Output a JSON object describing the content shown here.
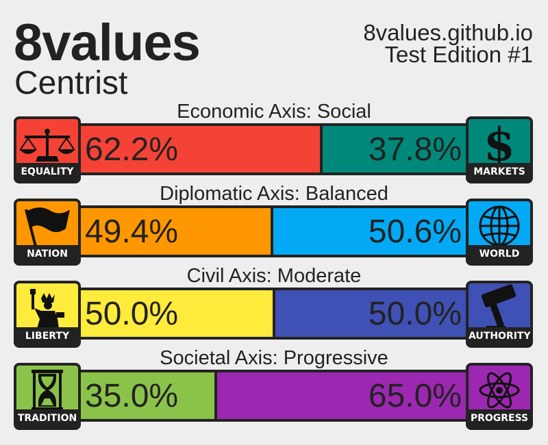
{
  "header": {
    "title": "8values",
    "result": "Centrist",
    "site": "8values.github.io",
    "edition": "Test Edition #1"
  },
  "axes": [
    {
      "label": "Economic Axis: Social",
      "left": {
        "name": "EQUALITY",
        "value": "62.2%",
        "percent": 62.2,
        "color": "#f44336",
        "icon": "scales-icon"
      },
      "right": {
        "name": "MARKETS",
        "value": "37.8%",
        "percent": 37.8,
        "color": "#00897b",
        "icon": "dollar-icon"
      }
    },
    {
      "label": "Diplomatic Axis: Balanced",
      "left": {
        "name": "NATION",
        "value": "49.4%",
        "percent": 49.4,
        "color": "#ff9800",
        "icon": "flag-icon"
      },
      "right": {
        "name": "WORLD",
        "value": "50.6%",
        "percent": 50.6,
        "color": "#03a9f4",
        "icon": "globe-icon"
      }
    },
    {
      "label": "Civil Axis: Moderate",
      "left": {
        "name": "LIBERTY",
        "value": "50.0%",
        "percent": 50.0,
        "color": "#ffeb3b",
        "icon": "statue-of-liberty-icon"
      },
      "right": {
        "name": "AUTHORITY",
        "value": "50.0%",
        "percent": 50.0,
        "color": "#3f51b5",
        "icon": "gavel-icon"
      }
    },
    {
      "label": "Societal Axis: Progressive",
      "left": {
        "name": "TRADITION",
        "value": "35.0%",
        "percent": 35.0,
        "color": "#8bc34a",
        "icon": "hourglass-icon"
      },
      "right": {
        "name": "PROGRESS",
        "value": "65.0%",
        "percent": 65.0,
        "color": "#9c27b0",
        "icon": "atom-icon"
      }
    }
  ]
}
